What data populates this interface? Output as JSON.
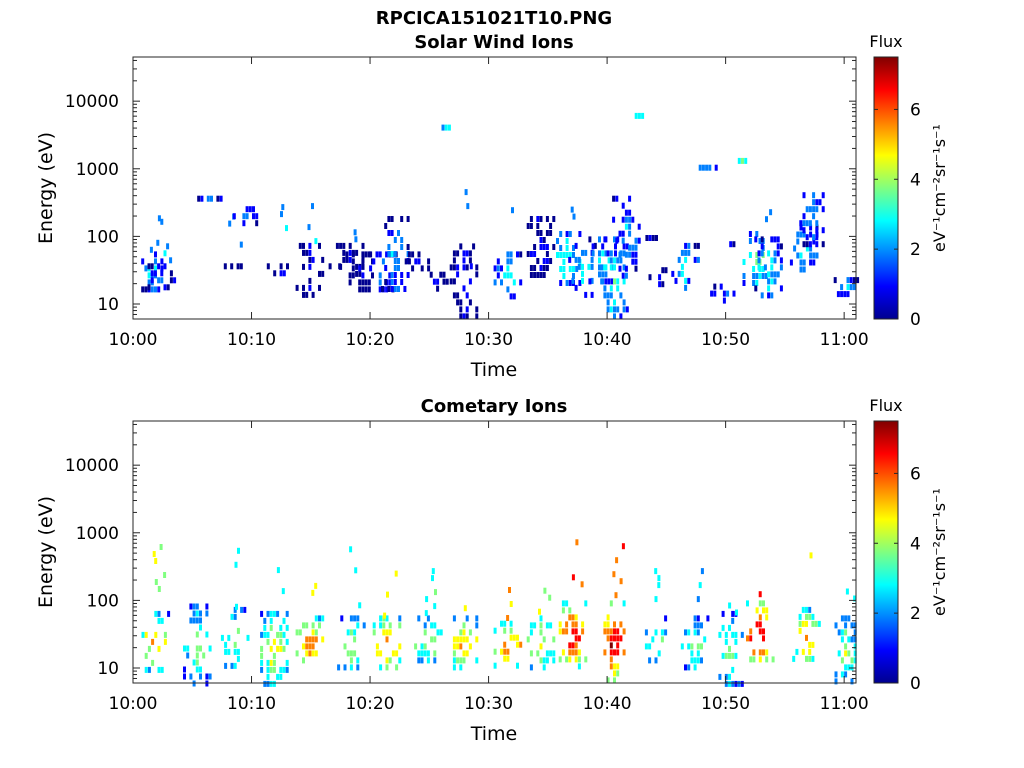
{
  "figure": {
    "title": "RPCICA151021T10.PNG"
  },
  "colormap": [
    "#00008f",
    "#0000ff",
    "#0080ff",
    "#00ffff",
    "#80ff80",
    "#ffff00",
    "#ff8000",
    "#ff0000",
    "#800000"
  ],
  "chart_data": [
    {
      "type": "heatmap",
      "title": "Solar Wind Ions",
      "xlabel": "Time",
      "ylabel": "Energy (eV)",
      "x_ticks": [
        "10:00",
        "10:10",
        "10:20",
        "10:30",
        "10:40",
        "10:50",
        "11:00"
      ],
      "xlim_minutes": [
        0,
        61
      ],
      "y_scale": "log",
      "ylim": [
        6,
        45000
      ],
      "y_ticks": [
        {
          "value": 10,
          "label": "10"
        },
        {
          "value": 100,
          "label": "100"
        },
        {
          "value": 1000,
          "label": "1000"
        },
        {
          "value": 10000,
          "label": "10000"
        }
      ],
      "colorbar": {
        "title": "Flux",
        "label": "eV⁻¹cm⁻²sr⁻¹s⁻¹",
        "range": [
          0,
          7.5
        ],
        "ticks": [
          "0",
          "2",
          "4",
          "6"
        ]
      },
      "bursts": [
        {
          "t": 1.5,
          "emin": 18,
          "emax": 60,
          "peak": 3.0,
          "upper_emax": 600
        },
        {
          "t": 2.3,
          "emin": 18,
          "emax": 40,
          "peak": 2.0,
          "upper_emax": 260
        },
        {
          "t": 6.5,
          "emin": 380,
          "emax": 400,
          "peak": 2.5
        },
        {
          "t": 8.2,
          "emin": 35,
          "emax": 40,
          "peak": 1.5,
          "upper_emax": 350
        },
        {
          "t": 9.5,
          "emin": 160,
          "emax": 280,
          "peak": 2.0
        },
        {
          "t": 12.1,
          "emin": 25,
          "emax": 40,
          "peak": 1.5,
          "upper_emax": 300
        },
        {
          "t": 14.8,
          "emin": 12,
          "emax": 80,
          "peak": 1.2,
          "upper_emax": 500
        },
        {
          "t": 16.5,
          "emin": 35,
          "emax": 40,
          "peak": 1.5
        },
        {
          "t": 18.2,
          "emin": 30,
          "emax": 80,
          "peak": 1.0,
          "upper_emax": 260
        },
        {
          "t": 19.0,
          "emin": 18,
          "emax": 60,
          "peak": 1.2
        },
        {
          "t": 21.0,
          "emin": 18,
          "emax": 60,
          "peak": 2.5
        },
        {
          "t": 22.0,
          "emin": 15,
          "emax": 200,
          "peak": 2.5
        },
        {
          "t": 24.0,
          "emin": 35,
          "emax": 60,
          "peak": 1.2
        },
        {
          "t": 25.3,
          "emin": 18,
          "emax": 30,
          "peak": 1.5
        },
        {
          "t": 26.3,
          "emin": 4500,
          "emax": 4500,
          "peak": 3.0
        },
        {
          "t": 27.8,
          "emin": 6,
          "emax": 100,
          "peak": 1.5,
          "upper_emax": 500
        },
        {
          "t": 29.5,
          "emin": 35,
          "emax": 40,
          "peak": 3.0
        },
        {
          "t": 31.5,
          "emin": 12,
          "emax": 60,
          "peak": 3.0,
          "upper_emax": 270
        },
        {
          "t": 34.3,
          "emin": 25,
          "emax": 200,
          "peak": 1.5
        },
        {
          "t": 36.5,
          "emin": 20,
          "emax": 120,
          "peak": 3.5,
          "upper_emax": 350
        },
        {
          "t": 37.8,
          "emin": 12,
          "emax": 80,
          "peak": 3.0
        },
        {
          "t": 39.5,
          "emin": 20,
          "emax": 100,
          "peak": 3.0
        },
        {
          "t": 40.5,
          "emin": 6,
          "emax": 100,
          "peak": 3.5
        },
        {
          "t": 41.5,
          "emin": 25,
          "emax": 400,
          "peak": 2.5
        },
        {
          "t": 42.6,
          "emin": 6700,
          "emax": 6700,
          "peak": 3.0
        },
        {
          "t": 43.5,
          "emin": 100,
          "emax": 105,
          "peak": 1.5
        },
        {
          "t": 44.3,
          "emin": 20,
          "emax": 35,
          "peak": 1.5
        },
        {
          "t": 46.5,
          "emin": 18,
          "emax": 80,
          "peak": 3.0
        },
        {
          "t": 48.0,
          "emin": 1100,
          "emax": 1150,
          "peak": 3.0
        },
        {
          "t": 49.5,
          "emin": 12,
          "emax": 20,
          "peak": 2.0
        },
        {
          "t": 50.3,
          "emin": 80,
          "emax": 85,
          "peak": 1.5
        },
        {
          "t": 51.3,
          "emin": 1450,
          "emax": 1450,
          "peak": 3.0
        },
        {
          "t": 52.5,
          "emin": 20,
          "emax": 120,
          "peak": 4.0
        },
        {
          "t": 53.5,
          "emin": 12,
          "emax": 100,
          "peak": 3.0,
          "upper_emax": 320
        },
        {
          "t": 56.5,
          "emin": 30,
          "emax": 150,
          "peak": 3.0
        },
        {
          "t": 57.3,
          "emin": 80,
          "emax": 450,
          "peak": 2.5
        },
        {
          "t": 60.2,
          "emin": 15,
          "emax": 25,
          "peak": 2.5
        }
      ]
    },
    {
      "type": "heatmap",
      "title": "Cometary Ions",
      "xlabel": "Time",
      "ylabel": "Energy (eV)",
      "x_ticks": [
        "10:00",
        "10:10",
        "10:20",
        "10:30",
        "10:40",
        "10:50",
        "11:00"
      ],
      "xlim_minutes": [
        0,
        61
      ],
      "y_scale": "log",
      "ylim": [
        6,
        45000
      ],
      "y_ticks": [
        {
          "value": 10,
          "label": "10"
        },
        {
          "value": 100,
          "label": "100"
        },
        {
          "value": 1000,
          "label": "1000"
        },
        {
          "value": 10000,
          "label": "10000"
        }
      ],
      "colorbar": {
        "title": "Flux",
        "label": "eV⁻¹cm⁻²sr⁻¹s⁻¹",
        "range": [
          0,
          7.5
        ],
        "ticks": [
          "0",
          "2",
          "4",
          "6"
        ]
      },
      "bursts": [
        {
          "t": 1.8,
          "emin": 10,
          "emax": 70,
          "peak": 5.3,
          "upper_emax": 1100
        },
        {
          "t": 5.3,
          "emin": 6,
          "emax": 90,
          "peak": 4.0
        },
        {
          "t": 8.5,
          "emin": 10,
          "emax": 80,
          "peak": 4.3,
          "upper_emax": 600
        },
        {
          "t": 11.8,
          "emin": 6,
          "emax": 70,
          "peak": 4.8,
          "upper_emax": 500
        },
        {
          "t": 14.8,
          "emin": 12,
          "emax": 60,
          "peak": 6.0,
          "upper_emax": 230
        },
        {
          "t": 18.3,
          "emin": 10,
          "emax": 60,
          "peak": 4.5,
          "upper_emax": 800
        },
        {
          "t": 21.3,
          "emin": 10,
          "emax": 60,
          "peak": 6.0,
          "upper_emax": 350
        },
        {
          "t": 24.8,
          "emin": 12,
          "emax": 60,
          "peak": 4.5,
          "upper_emax": 300
        },
        {
          "t": 27.8,
          "emin": 10,
          "emax": 60,
          "peak": 5.5,
          "upper_emax": 450
        },
        {
          "t": 31.5,
          "emin": 10,
          "emax": 50,
          "peak": 6.0,
          "upper_emax": 200
        },
        {
          "t": 34.3,
          "emin": 10,
          "emax": 60,
          "peak": 5.0,
          "upper_emax": 400
        },
        {
          "t": 37.0,
          "emin": 10,
          "emax": 100,
          "peak": 6.8,
          "upper_emax": 800
        },
        {
          "t": 40.5,
          "emin": 6,
          "emax": 100,
          "peak": 6.8,
          "upper_emax": 700
        },
        {
          "t": 44.0,
          "emin": 12,
          "emax": 60,
          "peak": 4.0,
          "upper_emax": 300
        },
        {
          "t": 47.3,
          "emin": 10,
          "emax": 60,
          "peak": 3.8,
          "upper_emax": 300
        },
        {
          "t": 50.2,
          "emin": 6,
          "emax": 70,
          "peak": 4.0,
          "upper_emax": 150
        },
        {
          "t": 52.8,
          "emin": 12,
          "emax": 100,
          "peak": 7.0,
          "upper_emax": 450
        },
        {
          "t": 56.7,
          "emin": 12,
          "emax": 80,
          "peak": 5.5,
          "upper_emax": 650
        },
        {
          "t": 60.0,
          "emin": 6,
          "emax": 60,
          "peak": 4.0,
          "upper_emax": 150
        }
      ]
    }
  ]
}
